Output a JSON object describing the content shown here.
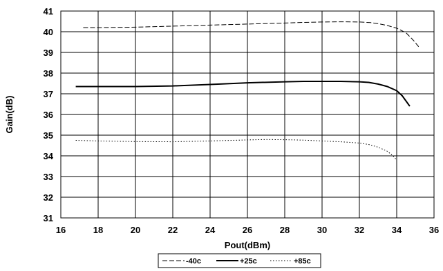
{
  "chart_data": {
    "type": "line",
    "title": "",
    "xlabel": "Pout(dBm)",
    "ylabel": "Gain(dB)",
    "xlim": [
      16,
      36
    ],
    "ylim": [
      31,
      41
    ],
    "xticks": [
      "16",
      "18",
      "20",
      "22",
      "24",
      "26",
      "28",
      "30",
      "32",
      "34",
      "36"
    ],
    "yticks": [
      "31",
      "32",
      "33",
      "34",
      "35",
      "36",
      "37",
      "38",
      "39",
      "40",
      "41"
    ],
    "grid": true,
    "legend_position": "bottom",
    "series": [
      {
        "name": "-40c",
        "style": "dashed",
        "color": "#000000",
        "x": [
          17.2,
          18,
          20,
          22,
          24,
          26,
          28,
          29,
          30,
          31,
          32,
          32.6,
          33,
          33.5,
          34,
          34.5,
          34.9,
          35.2
        ],
        "y": [
          40.2,
          40.2,
          40.22,
          40.27,
          40.32,
          40.37,
          40.42,
          40.45,
          40.47,
          40.48,
          40.47,
          40.44,
          40.39,
          40.3,
          40.17,
          39.95,
          39.58,
          39.25
        ]
      },
      {
        "name": "+25c",
        "style": "solid",
        "color": "#000000",
        "x": [
          16.8,
          18,
          20,
          22,
          24,
          26,
          28,
          29,
          30,
          31,
          32,
          32.5,
          33,
          33.5,
          34,
          34.3,
          34.5,
          34.7
        ],
        "y": [
          37.35,
          37.35,
          37.35,
          37.38,
          37.45,
          37.53,
          37.58,
          37.6,
          37.6,
          37.6,
          37.58,
          37.55,
          37.47,
          37.35,
          37.15,
          36.9,
          36.65,
          36.4
        ]
      },
      {
        "name": "+85c",
        "style": "dotted",
        "color": "#000000",
        "x": [
          16.8,
          18,
          20,
          22,
          24,
          26,
          27,
          28,
          29,
          30,
          31,
          32,
          32.5,
          33,
          33.5,
          33.8,
          34
        ],
        "y": [
          34.75,
          34.72,
          34.69,
          34.68,
          34.72,
          34.77,
          34.79,
          34.78,
          34.76,
          34.72,
          34.68,
          34.62,
          34.55,
          34.42,
          34.22,
          34.0,
          33.8
        ]
      }
    ]
  }
}
